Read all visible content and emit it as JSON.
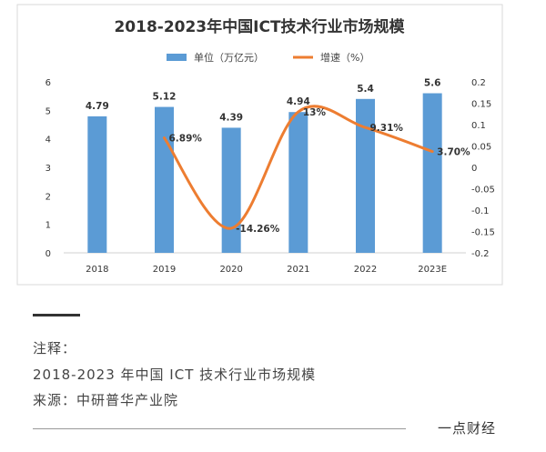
{
  "chart_data": {
    "type": "bar+line",
    "title": "2018-2023年中国ICT技术行业市场规模",
    "categories": [
      "2018",
      "2019",
      "2020",
      "2021",
      "2022",
      "2023E"
    ],
    "series": [
      {
        "name": "单位（万亿元）",
        "type": "bar",
        "axis": "left",
        "color": "#5b9bd5",
        "values": [
          4.79,
          5.12,
          4.39,
          4.94,
          5.4,
          5.6
        ],
        "labels": [
          "4.79",
          "5.12",
          "4.39",
          "4.94",
          "5.4",
          "5.6"
        ]
      },
      {
        "name": "增速（%）",
        "type": "line",
        "axis": "right",
        "color": "#ed7d31",
        "values": [
          null,
          0.0689,
          -0.1426,
          0.13,
          0.0931,
          0.037
        ],
        "labels": [
          "",
          "6.89%",
          "-14.26%",
          "13%",
          "9.31%",
          "3.70%"
        ]
      }
    ],
    "y_left": {
      "ylim": [
        0,
        6
      ],
      "ticks": [
        "0",
        "1",
        "2",
        "3",
        "4",
        "5",
        "6"
      ]
    },
    "y_right": {
      "ylim": [
        -0.2,
        0.2
      ],
      "ticks": [
        "-0.2",
        "-0.15",
        "-0.1",
        "-0.05",
        "0",
        "0.05",
        "0.1",
        "0.15",
        "0.2"
      ]
    },
    "legend": "top-center",
    "grid": false
  },
  "notes": {
    "heading": "注释：",
    "line1": "2018-2023 年中国 ICT 技术行业市场规模",
    "source": "来源：中研普华产业院"
  },
  "footer": {
    "brand": "一点财经"
  }
}
